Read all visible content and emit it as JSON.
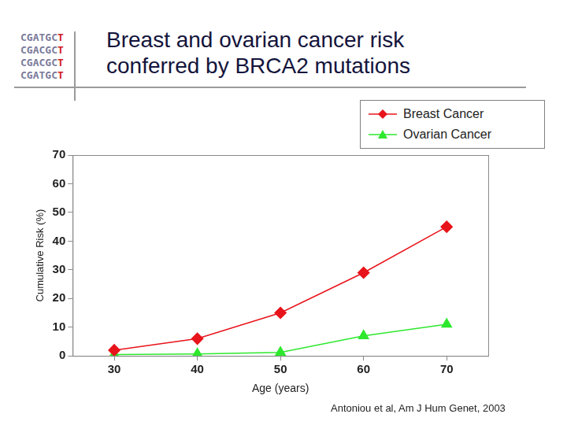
{
  "chart_data": {
    "type": "line",
    "title": "Breast and ovarian cancer risk conferred by BRCA2 mutations",
    "x_label": "Age (years)",
    "y_label": "Cumulative Risk (%)",
    "x": [
      30,
      40,
      50,
      60,
      70
    ],
    "series": [
      {
        "name": "Breast Cancer",
        "color": "#e8141b",
        "marker": "diamond",
        "values": [
          2,
          6,
          15,
          29,
          45
        ]
      },
      {
        "name": "Ovarian Cancer",
        "color": "#2ee82e",
        "marker": "triangle",
        "values": [
          0.5,
          0.7,
          1.2,
          7,
          11
        ]
      }
    ],
    "xlim": [
      25,
      75
    ],
    "xticks": [
      30,
      40,
      50,
      60,
      70
    ],
    "ylim": [
      0,
      70
    ],
    "yticks": [
      0,
      10,
      20,
      30,
      40,
      50,
      60,
      70
    ],
    "grid": false,
    "legend": "upper right"
  },
  "logo_lines": [
    "CGATGCT",
    "CGACGCT",
    "CGACGCT",
    "CGATGCT"
  ],
  "source": "Antoniou et al, Am J Hum Genet, 2003"
}
